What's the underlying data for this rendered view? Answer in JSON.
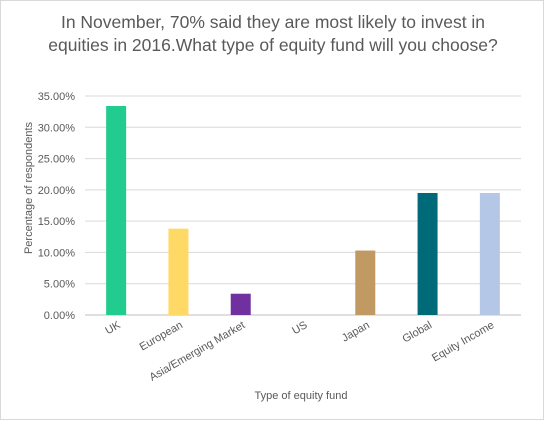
{
  "chart_data": {
    "type": "bar",
    "title": "In November, 70% said they are most likely to invest in equities in 2016.What type of equity fund will you choose?",
    "xlabel": "Type of equity fund",
    "ylabel": "Percentage of respondents",
    "ylim": [
      0,
      0.35
    ],
    "y_ticks": [
      0,
      0.05,
      0.1,
      0.15,
      0.2,
      0.25,
      0.3,
      0.35
    ],
    "y_tick_labels": [
      "0.00%",
      "5.00%",
      "10.00%",
      "15.00%",
      "20.00%",
      "25.00%",
      "30.00%",
      "35.00%"
    ],
    "grid": true,
    "legend": "none",
    "categories": [
      "UK",
      "European",
      "Asia/Emerging Market",
      "US",
      "Japan",
      "Global",
      "Equity Income"
    ],
    "values": [
      0.334,
      0.138,
      0.034,
      0.0,
      0.103,
      0.195,
      0.195
    ],
    "colors": [
      "#21cc8e",
      "#ffd966",
      "#7030a0",
      "#4472c4",
      "#c09a62",
      "#006a78",
      "#b4c7e7"
    ]
  }
}
